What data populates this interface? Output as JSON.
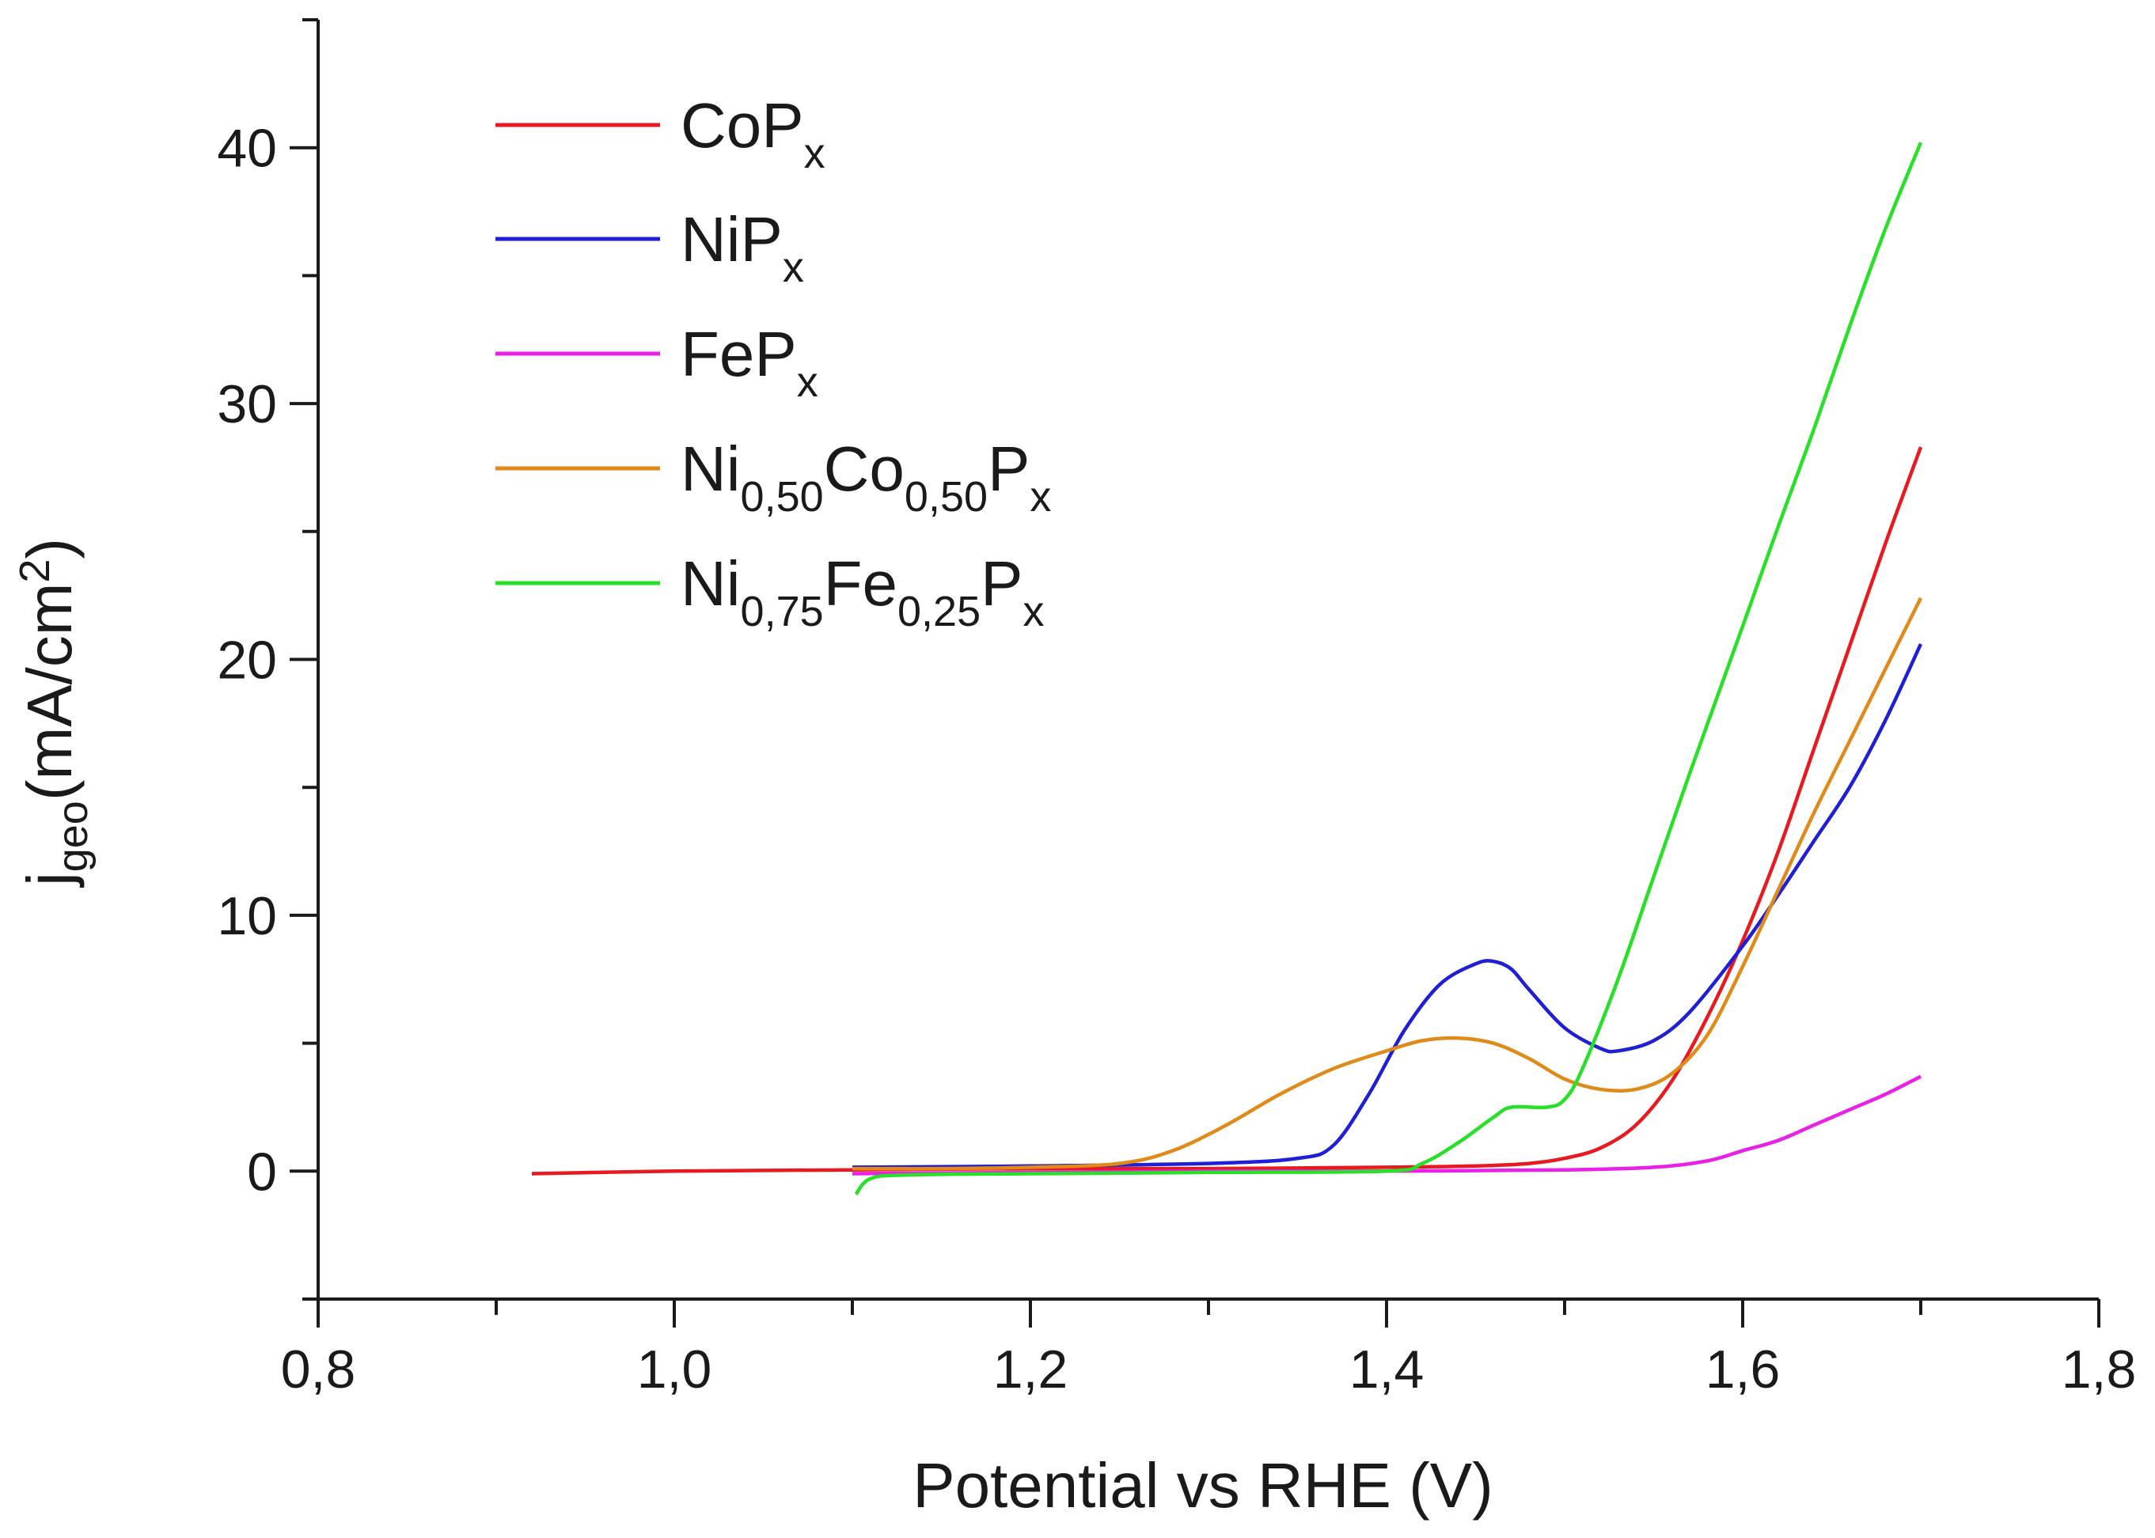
{
  "chart_data": {
    "type": "line",
    "title": "",
    "xlabel": "Potential vs RHE (V)",
    "ylabel_main": "j",
    "ylabel_sub": "geo",
    "ylabel_unit": "(mA/cm",
    "ylabel_sup": "2",
    "ylabel_close": ")",
    "xlim": [
      0.8,
      1.8
    ],
    "ylim": [
      -5,
      45
    ],
    "xticks": [
      0.8,
      1.0,
      1.2,
      1.4,
      1.6,
      1.8
    ],
    "xtick_labels": [
      "0,8",
      "1,0",
      "1,2",
      "1,4",
      "1,6",
      "1,8"
    ],
    "yticks": [
      0,
      10,
      20,
      30,
      40
    ],
    "ytick_labels": [
      "0",
      "10",
      "20",
      "30",
      "40"
    ],
    "grid": false,
    "legend_position": "top-left",
    "series": [
      {
        "name": "CoPx",
        "legend_parts": [
          {
            "t": "CoP",
            "s": "n"
          },
          {
            "t": "x",
            "s": "sub"
          }
        ],
        "color": "#e8191f",
        "points": [
          [
            0.92,
            -0.1
          ],
          [
            1.0,
            0.0
          ],
          [
            1.1,
            0.05
          ],
          [
            1.2,
            0.1
          ],
          [
            1.3,
            0.1
          ],
          [
            1.4,
            0.15
          ],
          [
            1.45,
            0.2
          ],
          [
            1.48,
            0.3
          ],
          [
            1.5,
            0.5
          ],
          [
            1.52,
            0.9
          ],
          [
            1.54,
            1.8
          ],
          [
            1.56,
            3.5
          ],
          [
            1.58,
            6.0
          ],
          [
            1.6,
            9.0
          ],
          [
            1.62,
            12.5
          ],
          [
            1.64,
            16.5
          ],
          [
            1.66,
            20.5
          ],
          [
            1.68,
            24.5
          ],
          [
            1.7,
            28.3
          ]
        ]
      },
      {
        "name": "NiPx",
        "legend_parts": [
          {
            "t": "NiP",
            "s": "n"
          },
          {
            "t": "x",
            "s": "sub"
          }
        ],
        "color": "#1f1fd6",
        "points": [
          [
            1.1,
            0.15
          ],
          [
            1.2,
            0.2
          ],
          [
            1.3,
            0.3
          ],
          [
            1.35,
            0.5
          ],
          [
            1.37,
            1.0
          ],
          [
            1.39,
            3.0
          ],
          [
            1.41,
            5.5
          ],
          [
            1.43,
            7.3
          ],
          [
            1.45,
            8.1
          ],
          [
            1.46,
            8.2
          ],
          [
            1.47,
            7.9
          ],
          [
            1.48,
            7.1
          ],
          [
            1.5,
            5.6
          ],
          [
            1.52,
            4.8
          ],
          [
            1.53,
            4.7
          ],
          [
            1.55,
            5.1
          ],
          [
            1.57,
            6.2
          ],
          [
            1.6,
            8.8
          ],
          [
            1.62,
            10.8
          ],
          [
            1.64,
            12.9
          ],
          [
            1.66,
            15.0
          ],
          [
            1.68,
            17.6
          ],
          [
            1.7,
            20.6
          ]
        ]
      },
      {
        "name": "FePx",
        "legend_parts": [
          {
            "t": "FeP",
            "s": "n"
          },
          {
            "t": "x",
            "s": "sub"
          }
        ],
        "color": "#e820e8",
        "points": [
          [
            1.1,
            -0.1
          ],
          [
            1.2,
            -0.05
          ],
          [
            1.3,
            0.0
          ],
          [
            1.4,
            0.0
          ],
          [
            1.5,
            0.05
          ],
          [
            1.55,
            0.15
          ],
          [
            1.58,
            0.4
          ],
          [
            1.6,
            0.8
          ],
          [
            1.62,
            1.2
          ],
          [
            1.64,
            1.8
          ],
          [
            1.66,
            2.4
          ],
          [
            1.68,
            3.0
          ],
          [
            1.7,
            3.7
          ]
        ]
      },
      {
        "name": "Ni0,50Co0,50Px",
        "legend_parts": [
          {
            "t": "Ni",
            "s": "n"
          },
          {
            "t": "0,50",
            "s": "sub"
          },
          {
            "t": "Co",
            "s": "n"
          },
          {
            "t": "0,50",
            "s": "sub"
          },
          {
            "t": "P",
            "s": "n"
          },
          {
            "t": "x",
            "s": "sub"
          }
        ],
        "color": "#e08a1a",
        "points": [
          [
            1.1,
            0.1
          ],
          [
            1.15,
            0.1
          ],
          [
            1.2,
            0.15
          ],
          [
            1.25,
            0.3
          ],
          [
            1.28,
            0.8
          ],
          [
            1.31,
            1.8
          ],
          [
            1.34,
            3.0
          ],
          [
            1.37,
            4.0
          ],
          [
            1.4,
            4.7
          ],
          [
            1.42,
            5.1
          ],
          [
            1.44,
            5.2
          ],
          [
            1.46,
            5.0
          ],
          [
            1.48,
            4.4
          ],
          [
            1.5,
            3.6
          ],
          [
            1.52,
            3.2
          ],
          [
            1.54,
            3.2
          ],
          [
            1.56,
            3.8
          ],
          [
            1.58,
            5.3
          ],
          [
            1.6,
            8.0
          ],
          [
            1.62,
            11.0
          ],
          [
            1.64,
            14.0
          ],
          [
            1.66,
            16.8
          ],
          [
            1.68,
            19.6
          ],
          [
            1.7,
            22.4
          ]
        ]
      },
      {
        "name": "Ni0,75Fe0,25Px",
        "legend_parts": [
          {
            "t": "Ni",
            "s": "n"
          },
          {
            "t": "0,75",
            "s": "sub"
          },
          {
            "t": "Fe",
            "s": "n"
          },
          {
            "t": "0,25",
            "s": "sub"
          },
          {
            "t": "P",
            "s": "n"
          },
          {
            "t": "x",
            "s": "sub"
          }
        ],
        "color": "#27e027",
        "points": [
          [
            1.102,
            -0.9
          ],
          [
            1.11,
            -0.3
          ],
          [
            1.13,
            -0.15
          ],
          [
            1.2,
            -0.1
          ],
          [
            1.3,
            -0.05
          ],
          [
            1.4,
            0.0
          ],
          [
            1.42,
            0.3
          ],
          [
            1.44,
            1.1
          ],
          [
            1.46,
            2.1
          ],
          [
            1.47,
            2.5
          ],
          [
            1.49,
            2.5
          ],
          [
            1.5,
            2.8
          ],
          [
            1.51,
            4.0
          ],
          [
            1.53,
            7.5
          ],
          [
            1.55,
            11.5
          ],
          [
            1.57,
            15.5
          ],
          [
            1.6,
            21.3
          ],
          [
            1.62,
            25.2
          ],
          [
            1.64,
            29.0
          ],
          [
            1.66,
            33.0
          ],
          [
            1.68,
            36.8
          ],
          [
            1.7,
            40.2
          ]
        ]
      }
    ]
  }
}
